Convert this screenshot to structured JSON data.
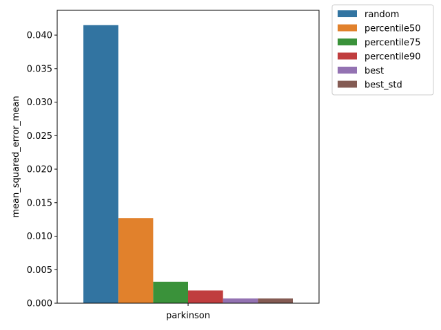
{
  "chart_data": {
    "type": "bar",
    "categories": [
      "parkinson"
    ],
    "series": [
      {
        "name": "random",
        "values": [
          0.0415
        ],
        "color": "#3274a1"
      },
      {
        "name": "percentile50",
        "values": [
          0.0127
        ],
        "color": "#e1812c"
      },
      {
        "name": "percentile75",
        "values": [
          0.0032
        ],
        "color": "#3a923a"
      },
      {
        "name": "percentile90",
        "values": [
          0.0019
        ],
        "color": "#c03d3e"
      },
      {
        "name": "best",
        "values": [
          0.0007
        ],
        "color": "#9372b2"
      },
      {
        "name": "best_std",
        "values": [
          0.0007
        ],
        "color": "#845b53"
      }
    ],
    "title": "",
    "xlabel": "",
    "ylabel": "mean_squared_error_mean",
    "ylim": [
      0,
      0.0437
    ],
    "yticks": [
      0.0,
      0.005,
      0.01,
      0.015,
      0.02,
      0.025,
      0.03,
      0.035,
      0.04
    ],
    "ytick_labels": [
      "0.000",
      "0.005",
      "0.010",
      "0.015",
      "0.020",
      "0.025",
      "0.030",
      "0.035",
      "0.040"
    ],
    "grid": false,
    "legend_position": "outside-top-right"
  }
}
